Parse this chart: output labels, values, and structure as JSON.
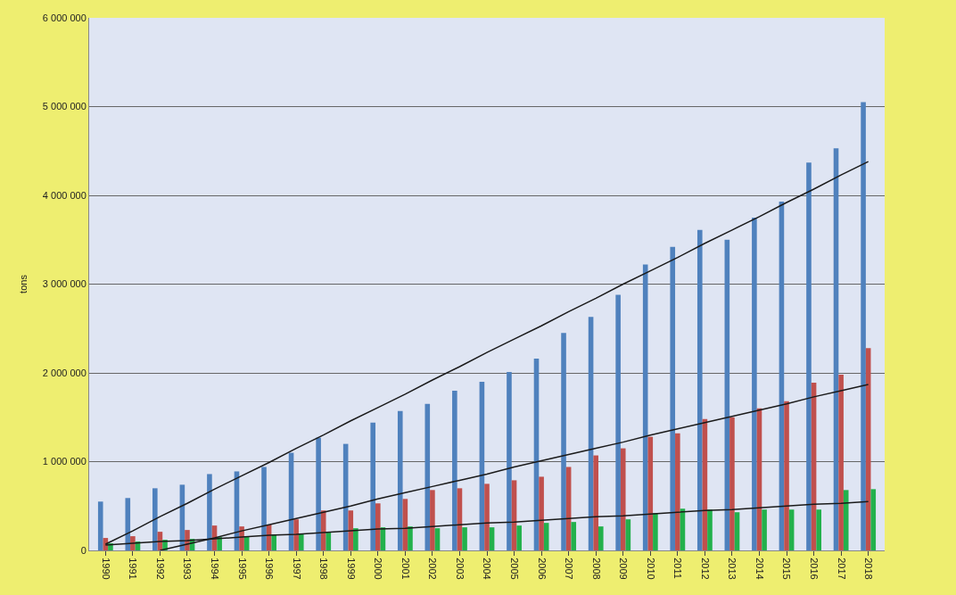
{
  "chart_data": {
    "type": "bar",
    "ylabel": "tons",
    "categories": [
      "1990",
      "1991",
      "1992",
      "1993",
      "1994",
      "1995",
      "1996",
      "1997",
      "1998",
      "1999",
      "2000",
      "2001",
      "2002",
      "2003",
      "2004",
      "2005",
      "2006",
      "2007",
      "2008",
      "2009",
      "2010",
      "2011",
      "2012",
      "2013",
      "2014",
      "2015",
      "2016",
      "2017",
      "2018"
    ],
    "series": [
      {
        "color": "#4f81bd",
        "values": [
          550000,
          590000,
          700000,
          740000,
          860000,
          890000,
          940000,
          1100000,
          1270000,
          1200000,
          1440000,
          1570000,
          1650000,
          1800000,
          1900000,
          2010000,
          2160000,
          2450000,
          2630000,
          2880000,
          3220000,
          3420000,
          3610000,
          3500000,
          3750000,
          3930000,
          4370000,
          4530000,
          5050000
        ]
      },
      {
        "color": "#c0504d",
        "values": [
          140000,
          160000,
          210000,
          230000,
          280000,
          270000,
          290000,
          350000,
          450000,
          450000,
          530000,
          580000,
          680000,
          700000,
          750000,
          790000,
          830000,
          940000,
          1070000,
          1150000,
          1280000,
          1320000,
          1480000,
          1500000,
          1600000,
          1680000,
          1890000,
          1980000,
          2280000
        ]
      },
      {
        "color": "#22b14c",
        "values": [
          80000,
          100000,
          120000,
          130000,
          150000,
          160000,
          180000,
          190000,
          210000,
          250000,
          260000,
          270000,
          250000,
          260000,
          260000,
          280000,
          310000,
          320000,
          270000,
          350000,
          420000,
          470000,
          460000,
          430000,
          460000,
          460000,
          460000,
          680000,
          690000
        ]
      },
      {
        "type": "line",
        "color": "#1a1a1a",
        "values": [
          70000,
          220000,
          380000,
          530000,
          690000,
          840000,
          990000,
          1150000,
          1300000,
          1460000,
          1610000,
          1760000,
          1920000,
          2070000,
          2230000,
          2380000,
          2530000,
          2690000,
          2840000,
          3000000,
          3150000,
          3300000,
          3460000,
          3610000,
          3760000,
          3920000,
          4070000,
          4230000,
          4380000
        ]
      },
      {
        "type": "line",
        "color": "#1a1a1a",
        "values": [
          null,
          null,
          0,
          70000,
          140000,
          220000,
          290000,
          360000,
          430000,
          500000,
          580000,
          650000,
          720000,
          790000,
          860000,
          940000,
          1010000,
          1080000,
          1150000,
          1220000,
          1300000,
          1370000,
          1440000,
          1510000,
          1580000,
          1650000,
          1730000,
          1800000,
          1870000
        ]
      },
      {
        "type": "line",
        "color": "#1a1a1a",
        "values": [
          60000,
          80000,
          100000,
          110000,
          130000,
          150000,
          170000,
          180000,
          200000,
          220000,
          240000,
          250000,
          270000,
          290000,
          310000,
          320000,
          340000,
          360000,
          380000,
          390000,
          410000,
          430000,
          450000,
          460000,
          480000,
          500000,
          520000,
          530000,
          550000
        ]
      }
    ],
    "ylim": [
      0,
      6000000
    ],
    "yticks": [
      0,
      {
        "value": 1000000,
        "label": "1 000 000"
      },
      {
        "value": 2000000,
        "label": "2 000 000"
      },
      {
        "value": 3000000,
        "label": "3 000 000"
      },
      {
        "value": 4000000,
        "label": "4 000 000"
      },
      {
        "value": 5000000,
        "label": "5 000 000"
      },
      {
        "value": 6000000,
        "label": "6 000 000"
      }
    ],
    "grid": "y"
  }
}
